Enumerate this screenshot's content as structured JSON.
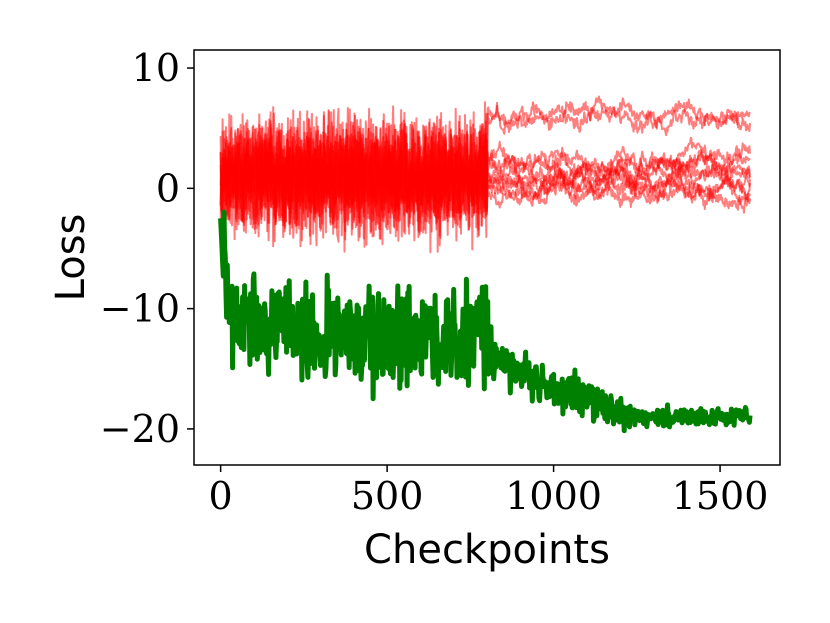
{
  "chart_data": {
    "type": "line",
    "title": "",
    "xlabel": "Checkpoints",
    "ylabel": "Loss",
    "xlim": [
      -80,
      1680
    ],
    "ylim": [
      -23,
      11.5
    ],
    "x_ticks": [
      0,
      500,
      1000,
      1500
    ],
    "x_tick_labels": [
      "0",
      "500",
      "1000",
      "1500"
    ],
    "y_ticks": [
      10,
      0,
      -10,
      -20
    ],
    "y_tick_labels": [
      "10",
      "−0",
      "−10",
      "−20"
    ],
    "grid": false,
    "legend": "none",
    "x_range": [
      0,
      1590
    ],
    "series": [
      {
        "color": "#ff0000",
        "opacity": 0.5,
        "stroke_width": 2,
        "count": 10,
        "phase1": {
          "x_end": 800,
          "mean": 1.0,
          "amplitude": 3.5
        },
        "phase2_levels": [
          6.5,
          6.0,
          2.5,
          1.5,
          1.0,
          0.5,
          0.0,
          -0.5,
          2.0,
          1.2
        ],
        "phase2_jitter": 0.6
      },
      {
        "color": "#008000",
        "opacity": 1,
        "stroke_width": 5,
        "count": 1,
        "points": [
          [
            0,
            -2.5
          ],
          [
            20,
            -9
          ],
          [
            50,
            -11
          ],
          [
            100,
            -12
          ],
          [
            150,
            -11.5
          ],
          [
            200,
            -12
          ],
          [
            250,
            -12.5
          ],
          [
            300,
            -12
          ],
          [
            350,
            -11.5
          ],
          [
            400,
            -12
          ],
          [
            450,
            -12.5
          ],
          [
            500,
            -13
          ],
          [
            550,
            -12.5
          ],
          [
            600,
            -12
          ],
          [
            650,
            -12.5
          ],
          [
            700,
            -12.5
          ],
          [
            750,
            -12
          ],
          [
            800,
            -12
          ],
          [
            820,
            -14
          ],
          [
            850,
            -14.5
          ],
          [
            900,
            -15.5
          ],
          [
            950,
            -16
          ],
          [
            1000,
            -16.5
          ],
          [
            1050,
            -17
          ],
          [
            1100,
            -17.5
          ],
          [
            1150,
            -18
          ],
          [
            1200,
            -18.5
          ],
          [
            1250,
            -19
          ],
          [
            1300,
            -19
          ],
          [
            1400,
            -19
          ],
          [
            1500,
            -19
          ],
          [
            1590,
            -19
          ]
        ],
        "noise_amplitude": [
          [
            0,
            3.5
          ],
          [
            800,
            3.5
          ],
          [
            820,
            1.5
          ],
          [
            1200,
            1.3
          ],
          [
            1250,
            0.6
          ],
          [
            1590,
            0.6
          ]
        ]
      }
    ]
  }
}
